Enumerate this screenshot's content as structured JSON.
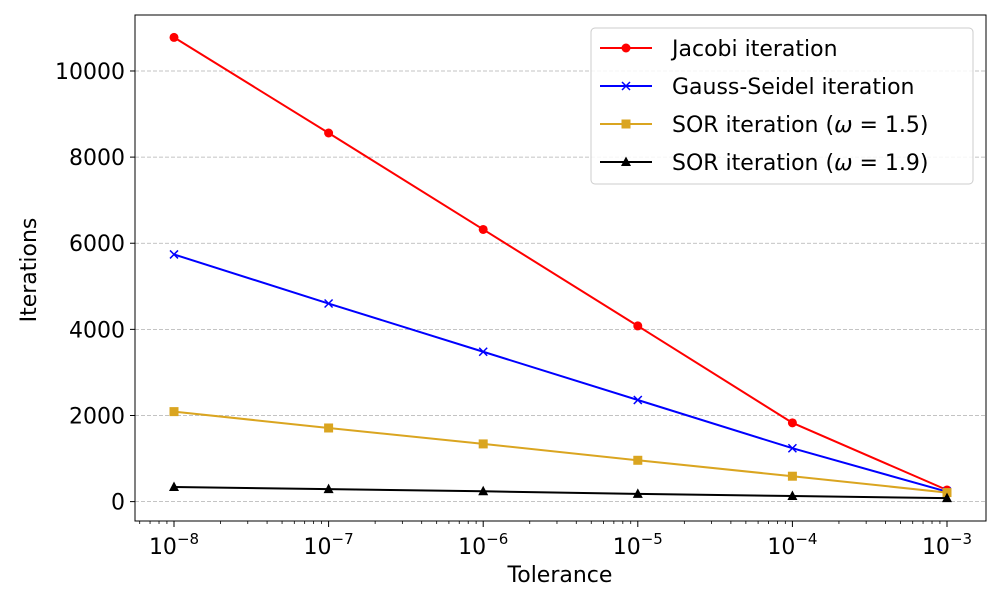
{
  "chart_data": {
    "type": "line",
    "x_scale": "log",
    "x": [
      1e-08,
      1e-07,
      1e-06,
      1e-05,
      0.0001,
      0.001
    ],
    "x_tick_labels": [
      {
        "base": "10",
        "exp": "−8"
      },
      {
        "base": "10",
        "exp": "−7"
      },
      {
        "base": "10",
        "exp": "−6"
      },
      {
        "base": "10",
        "exp": "−5"
      },
      {
        "base": "10",
        "exp": "−4"
      },
      {
        "base": "10",
        "exp": "−3"
      }
    ],
    "xlabel": "Tolerance",
    "ylabel": "Iterations",
    "ylim": [
      -450,
      11300
    ],
    "y_ticks": [
      0,
      2000,
      4000,
      6000,
      8000,
      10000
    ],
    "grid": "horizontal dashed",
    "legend_position": "top-right",
    "series": [
      {
        "name": "Jacobi iteration",
        "legend": {
          "main": "Jacobi iteration"
        },
        "color": "#ff0000",
        "marker": "circle",
        "values": [
          10780,
          8560,
          6320,
          4080,
          1830,
          270
        ]
      },
      {
        "name": "Gauss-Seidel iteration",
        "legend": {
          "main": "Gauss-Seidel iteration"
        },
        "color": "#0000ff",
        "marker": "x",
        "values": [
          5740,
          4600,
          3480,
          2360,
          1240,
          230
        ]
      },
      {
        "name": "SOR iteration (ω = 1.5)",
        "legend": {
          "main": "SOR iteration (",
          "omega": "ω",
          "rest": " = 1.5)"
        },
        "color": "#daa520",
        "marker": "square",
        "values": [
          2090,
          1710,
          1340,
          960,
          590,
          210
        ]
      },
      {
        "name": "SOR iteration (ω = 1.9)",
        "legend": {
          "main": "SOR iteration (",
          "omega": "ω",
          "rest": " = 1.9)"
        },
        "color": "#000000",
        "marker": "triangle",
        "values": [
          340,
          290,
          240,
          180,
          130,
          80
        ]
      }
    ]
  }
}
